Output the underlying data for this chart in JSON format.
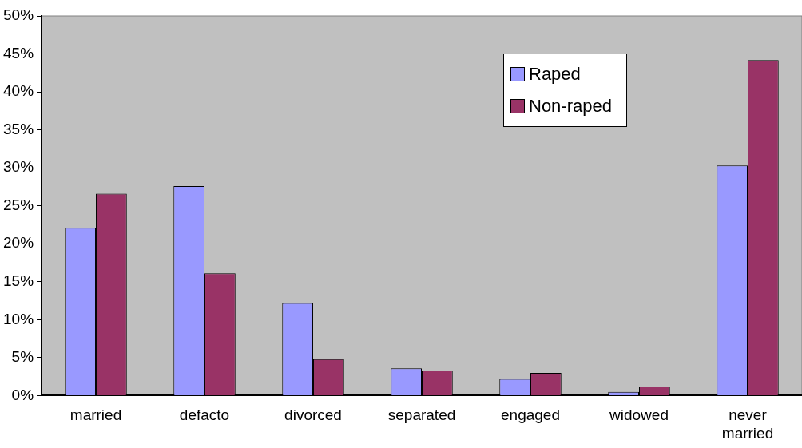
{
  "chart_data": {
    "type": "bar",
    "categories": [
      "married",
      "defacto",
      "divorced",
      "separated",
      "engaged",
      "widowed",
      "never married"
    ],
    "series": [
      {
        "name": "Raped",
        "color": "#9999ff",
        "values": [
          22.1,
          27.6,
          12.2,
          3.6,
          2.2,
          0.5,
          30.3
        ]
      },
      {
        "name": "Non-raped",
        "color": "#993366",
        "values": [
          26.6,
          16.1,
          4.8,
          3.3,
          3.0,
          1.2,
          44.2
        ]
      }
    ],
    "ylim": [
      0,
      50
    ],
    "yticks": [
      {
        "value": 0,
        "label": "0%"
      },
      {
        "value": 5,
        "label": "5%"
      },
      {
        "value": 10,
        "label": "10%"
      },
      {
        "value": 15,
        "label": "15%"
      },
      {
        "value": 20,
        "label": "20%"
      },
      {
        "value": 25,
        "label": "25%"
      },
      {
        "value": 30,
        "label": "30%"
      },
      {
        "value": 35,
        "label": "35%"
      },
      {
        "value": 40,
        "label": "40%"
      },
      {
        "value": 45,
        "label": "45%"
      },
      {
        "value": 50,
        "label": "50%"
      }
    ],
    "grid": false,
    "legend": "top right"
  }
}
